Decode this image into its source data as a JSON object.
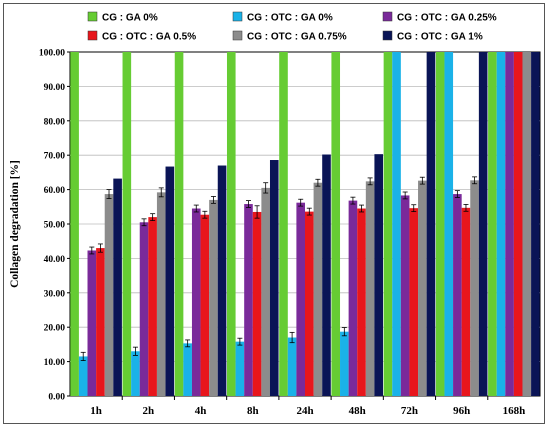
{
  "chart_data": {
    "type": "bar",
    "title": "",
    "xlabel": "",
    "ylabel": "Collagen degradation [%]",
    "ylim": [
      0,
      100
    ],
    "yticks": [
      "0.00",
      "10.00",
      "20.00",
      "30.00",
      "40.00",
      "50.00",
      "60.00",
      "70.00",
      "80.00",
      "90.00",
      "100.00"
    ],
    "categories": [
      "1h",
      "2h",
      "4h",
      "8h",
      "24h",
      "48h",
      "72h",
      "96h",
      "168h"
    ],
    "grid": true,
    "legend_position": "top",
    "series": [
      {
        "name": "CG : GA 0%",
        "color": "#66cc33",
        "values": [
          100,
          100,
          100,
          100,
          100,
          100,
          100,
          100,
          100
        ],
        "errors": [
          0,
          0,
          0,
          0,
          0,
          0,
          0,
          0,
          0
        ]
      },
      {
        "name": "CG : OTC : GA 0%",
        "color": "#1ab2e8",
        "values": [
          11.5,
          13,
          15.3,
          15.8,
          17,
          18.7,
          100,
          100,
          100
        ],
        "errors": [
          1.2,
          1.2,
          1.0,
          1.0,
          1.5,
          1.2,
          0,
          0,
          0
        ]
      },
      {
        "name": "CG : OTC : GA 0.25%",
        "color": "#7a2a9a",
        "values": [
          42.3,
          50.5,
          54.5,
          55.8,
          56.2,
          56.8,
          58.3,
          58.7,
          100
        ],
        "errors": [
          1.0,
          1.0,
          1.0,
          1.0,
          1.0,
          1.0,
          1.0,
          1.0,
          0
        ]
      },
      {
        "name": "CG : OTC : GA 0.5%",
        "color": "#e8161c",
        "values": [
          43,
          52,
          52.7,
          53.5,
          53.6,
          54.5,
          54.6,
          54.7,
          100
        ],
        "errors": [
          1.2,
          1.0,
          1.0,
          1.8,
          1.0,
          1.0,
          1.0,
          1.0,
          0
        ]
      },
      {
        "name": "CG : OTC : GA 0.75%",
        "color": "#8c8c8c",
        "values": [
          58.7,
          59.2,
          57,
          60.5,
          62,
          62.4,
          62.6,
          62.7,
          100
        ],
        "errors": [
          1.3,
          1.3,
          1.0,
          1.5,
          1.0,
          1.0,
          1.0,
          1.0,
          0
        ]
      },
      {
        "name": "CG : OTC : GA 1%",
        "color": "#0a1456",
        "values": [
          63.2,
          66.7,
          67,
          68.6,
          70.2,
          70.3,
          100,
          100,
          100
        ],
        "errors": [
          0,
          0,
          0,
          0,
          0,
          0,
          0,
          0,
          0
        ]
      }
    ]
  }
}
